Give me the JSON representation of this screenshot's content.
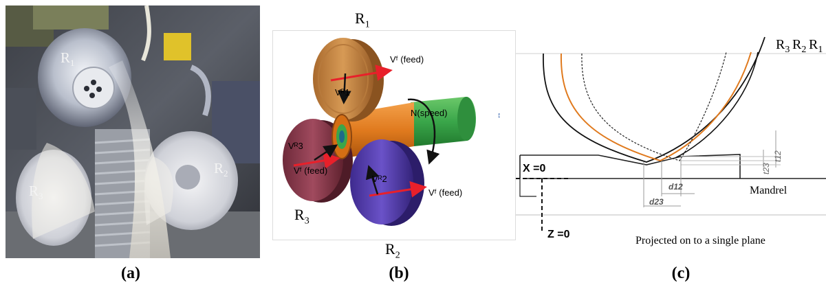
{
  "panel_a": {
    "caption": "(a)",
    "roller_labels": {
      "r1": "R",
      "r1_sub": "1",
      "r2": "R",
      "r2_sub": "2",
      "r3": "R",
      "r3_sub": "3"
    }
  },
  "panel_b": {
    "caption": "(b)",
    "roller_labels": {
      "r1": "R",
      "r1_sub": "1",
      "r2": "R",
      "r2_sub": "2",
      "r3": "R",
      "r3_sub": "3"
    },
    "annotations": {
      "feed_r1": "Vᶠ (feed)",
      "vr1": "Vᴿ1",
      "speed": "N(speed)",
      "vr3": "Vᴿ3",
      "feed_r3": "Vᶠ (feed)",
      "vr2": "Vᴿ2",
      "feed_r2": "Vᶠ (feed)"
    },
    "colors": {
      "r1": "#c98a45",
      "r3": "#8c3c4e",
      "r2": "#5a3fb0",
      "tube": "#e07a1e",
      "mandrel": "#3aa64a",
      "arrow": "#e8202a"
    }
  },
  "panel_c": {
    "caption": "(c)",
    "profile_labels": {
      "r3": "R",
      "r3_sub": "3",
      "r2": "R",
      "r2_sub": "2",
      "r1": "R",
      "r1_sub": "1"
    },
    "x_zero": "X =0",
    "z_zero": "Z =0",
    "mandrel": "Mandrel",
    "note": "Projected on to a single plane",
    "dims": {
      "d12": "d12",
      "d23": "d23",
      "t12": "t12",
      "t23": "t23"
    },
    "colors": {
      "r2_profile": "#e07a1e"
    }
  }
}
